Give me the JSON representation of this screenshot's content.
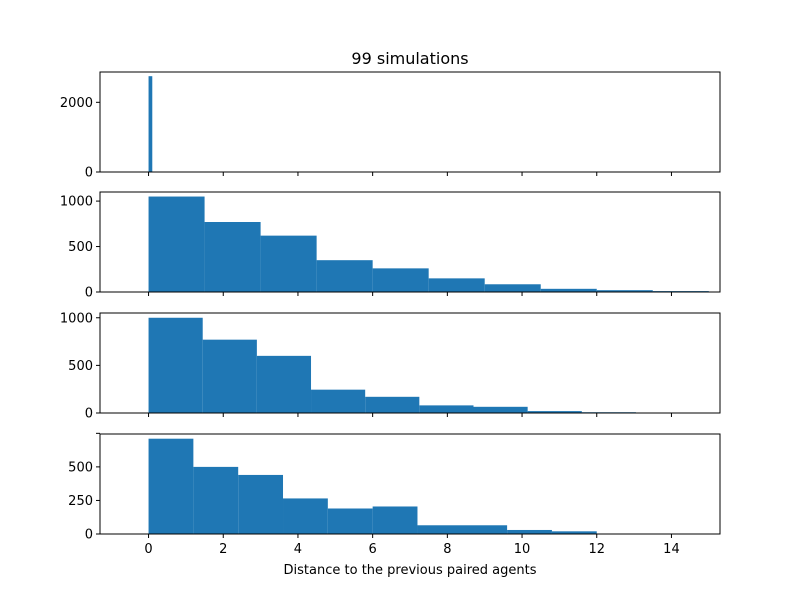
{
  "figure": {
    "title": "99 simulations",
    "xlabel": "Distance to the previous paired agents",
    "bar_color": "#1f77b4"
  },
  "chart_data": [
    {
      "type": "bar",
      "title": "99 simulations",
      "xlim": [
        -1.3,
        15.3
      ],
      "ylim": [
        0,
        2870
      ],
      "yticks": [
        0,
        2000
      ],
      "xticks": [
        0,
        2,
        4,
        6,
        8,
        10,
        12,
        14
      ],
      "show_xtick_labels": false,
      "bins": [
        {
          "x0": 0,
          "x1": 0.1,
          "value": 2750
        }
      ]
    },
    {
      "type": "bar",
      "xlim": [
        -1.3,
        15.3
      ],
      "ylim": [
        0,
        1100
      ],
      "yticks": [
        0,
        500,
        1000
      ],
      "xticks": [
        0,
        2,
        4,
        6,
        8,
        10,
        12,
        14
      ],
      "show_xtick_labels": false,
      "bins": [
        {
          "x0": 0,
          "x1": 1.5,
          "value": 1050
        },
        {
          "x0": 1.5,
          "x1": 3.0,
          "value": 770
        },
        {
          "x0": 3.0,
          "x1": 4.5,
          "value": 620
        },
        {
          "x0": 4.5,
          "x1": 6.0,
          "value": 350
        },
        {
          "x0": 6.0,
          "x1": 7.5,
          "value": 260
        },
        {
          "x0": 7.5,
          "x1": 9.0,
          "value": 150
        },
        {
          "x0": 9.0,
          "x1": 10.5,
          "value": 85
        },
        {
          "x0": 10.5,
          "x1": 12.0,
          "value": 35
        },
        {
          "x0": 12.0,
          "x1": 13.5,
          "value": 20
        },
        {
          "x0": 13.5,
          "x1": 15.0,
          "value": 10
        }
      ]
    },
    {
      "type": "bar",
      "xlim": [
        -1.3,
        15.3
      ],
      "ylim": [
        0,
        1050
      ],
      "yticks": [
        0,
        500,
        1000
      ],
      "xticks": [
        0,
        2,
        4,
        6,
        8,
        10,
        12,
        14
      ],
      "show_xtick_labels": false,
      "bins": [
        {
          "x0": 0,
          "x1": 1.45,
          "value": 1000
        },
        {
          "x0": 1.45,
          "x1": 2.9,
          "value": 770
        },
        {
          "x0": 2.9,
          "x1": 4.35,
          "value": 600
        },
        {
          "x0": 4.35,
          "x1": 5.8,
          "value": 245
        },
        {
          "x0": 5.8,
          "x1": 7.25,
          "value": 170
        },
        {
          "x0": 7.25,
          "x1": 8.7,
          "value": 80
        },
        {
          "x0": 8.7,
          "x1": 10.15,
          "value": 65
        },
        {
          "x0": 10.15,
          "x1": 11.6,
          "value": 20
        },
        {
          "x0": 11.6,
          "x1": 13.05,
          "value": 8
        }
      ]
    },
    {
      "type": "bar",
      "xlim": [
        -1.3,
        15.3
      ],
      "ylim": [
        0,
        745
      ],
      "yticks": [
        0,
        250,
        500,
        750
      ],
      "ytick_labels": [
        "0",
        "250",
        "500",
        ""
      ],
      "xticks": [
        0,
        2,
        4,
        6,
        8,
        10,
        12,
        14
      ],
      "show_xtick_labels": true,
      "bins": [
        {
          "x0": 0,
          "x1": 1.2,
          "value": 710
        },
        {
          "x0": 1.2,
          "x1": 2.4,
          "value": 500
        },
        {
          "x0": 2.4,
          "x1": 3.6,
          "value": 440
        },
        {
          "x0": 3.6,
          "x1": 4.8,
          "value": 265
        },
        {
          "x0": 4.8,
          "x1": 6.0,
          "value": 190
        },
        {
          "x0": 6.0,
          "x1": 7.2,
          "value": 205
        },
        {
          "x0": 7.2,
          "x1": 9.6,
          "value": 65
        },
        {
          "x0": 9.6,
          "x1": 10.8,
          "value": 30
        },
        {
          "x0": 10.8,
          "x1": 12.0,
          "value": 20
        }
      ]
    }
  ]
}
